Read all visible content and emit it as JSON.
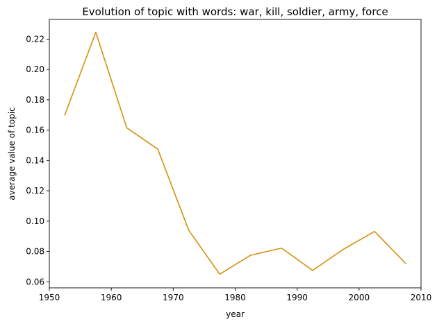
{
  "chart_data": {
    "type": "line",
    "title": "Evolution of topic with words: war, kill, soldier, army, force",
    "xlabel": "year",
    "ylabel": "average value of topic",
    "xlim": [
      1950,
      2010
    ],
    "ylim": [
      0.056,
      0.233
    ],
    "xticks": [
      1950,
      1960,
      1970,
      1980,
      1990,
      2000,
      2010
    ],
    "yticks": [
      0.06,
      0.08,
      0.1,
      0.12,
      0.14,
      0.16,
      0.18,
      0.2,
      0.22
    ],
    "ytick_labels": [
      "0.06",
      "0.08",
      "0.10",
      "0.12",
      "0.14",
      "0.16",
      "0.18",
      "0.20",
      "0.22"
    ],
    "grid": false,
    "series": [
      {
        "color": "#d4900d",
        "x": [
          1952.5,
          1957.5,
          1962.5,
          1967.5,
          1972.5,
          1977.5,
          1982.5,
          1987.5,
          1992.5,
          1997.5,
          2002.5,
          2007.5
        ],
        "y": [
          0.17,
          0.2245,
          0.1615,
          0.1475,
          0.094,
          0.065,
          0.0775,
          0.0822,
          0.0675,
          0.0815,
          0.0932,
          0.0722
        ]
      }
    ]
  }
}
